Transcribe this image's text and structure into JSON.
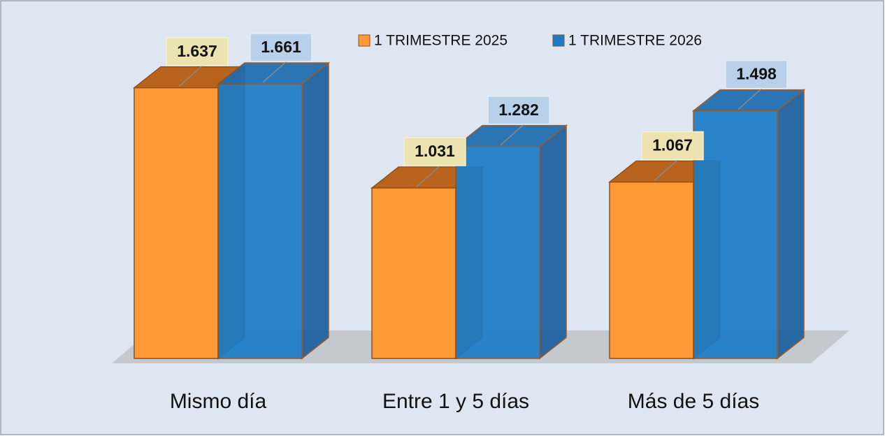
{
  "chart_data": {
    "type": "bar3d",
    "categories": [
      "Mismo día",
      "Entre 1 y 5 días",
      "Más de 5 días"
    ],
    "series": [
      {
        "name": "1 TRIMESTRE 2025",
        "color": "#fd9a35",
        "values": [
          1637,
          1031,
          1067
        ],
        "value_labels": [
          "1.637",
          "1.031",
          "1.067"
        ]
      },
      {
        "name": "1 TRIMESTRE 2026",
        "color": "#1a7cc8",
        "values": [
          1661,
          1282,
          1498
        ],
        "value_labels": [
          "1.661",
          "1.282",
          "1.498"
        ]
      }
    ]
  }
}
